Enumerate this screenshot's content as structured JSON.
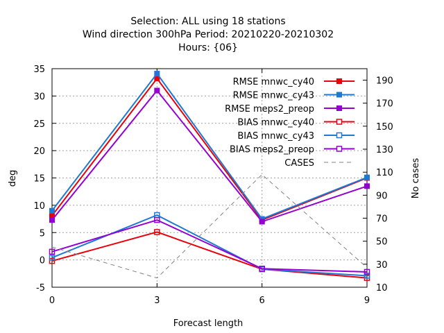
{
  "chart_data": {
    "type": "line",
    "title_lines": [
      "Selection: ALL using    18 stations",
      "Wind direction 300hPa   Period: 20210220-20210302",
      "Hours: {06}"
    ],
    "xlabel": "Forecast length",
    "ylabel": "deg",
    "y2label": "No cases",
    "x": [
      0,
      3,
      6,
      9
    ],
    "xticks": [
      "0",
      "3",
      "6",
      "9"
    ],
    "xlim": [
      0,
      9
    ],
    "ylim": [
      -5,
      35
    ],
    "yticks": [
      "-5",
      "0",
      "5",
      "10",
      "15",
      "20",
      "25",
      "30",
      "35"
    ],
    "y2lim": [
      10,
      200
    ],
    "y2ticks": [
      "10",
      "30",
      "50",
      "70",
      "90",
      "110",
      "130",
      "150",
      "170",
      "190"
    ],
    "grid": true,
    "legend_position": "top-right",
    "series": [
      {
        "name": "RMSE mnwc_cy40",
        "color": "#e8000b",
        "marker": "filled-square",
        "axis": "left",
        "values": [
          8.1,
          33.2,
          7.3,
          15.0
        ]
      },
      {
        "name": "RMSE mnwc_cy43",
        "color": "#1f78d4",
        "marker": "filled-square",
        "axis": "left",
        "values": [
          9.0,
          34.1,
          7.5,
          15.1
        ]
      },
      {
        "name": "RMSE meps2_preop",
        "color": "#9400d3",
        "marker": "filled-square",
        "axis": "left",
        "values": [
          7.3,
          31.0,
          7.0,
          13.5
        ]
      },
      {
        "name": "BIAS mnwc_cy40",
        "color": "#e8000b",
        "marker": "open-square",
        "axis": "left",
        "values": [
          -0.2,
          5.1,
          -1.7,
          -3.3
        ]
      },
      {
        "name": "BIAS mnwc_cy43",
        "color": "#1f78d4",
        "marker": "open-square",
        "axis": "left",
        "values": [
          0.4,
          8.2,
          -1.7,
          -2.9
        ]
      },
      {
        "name": "BIAS meps2_preop",
        "color": "#9400d3",
        "marker": "open-square",
        "axis": "left",
        "values": [
          1.5,
          7.3,
          -1.6,
          -2.2
        ]
      },
      {
        "name": "CASES",
        "color": "#808080",
        "marker": "none",
        "dashed": true,
        "axis": "right",
        "values": [
          45,
          18,
          108,
          27
        ]
      }
    ]
  }
}
